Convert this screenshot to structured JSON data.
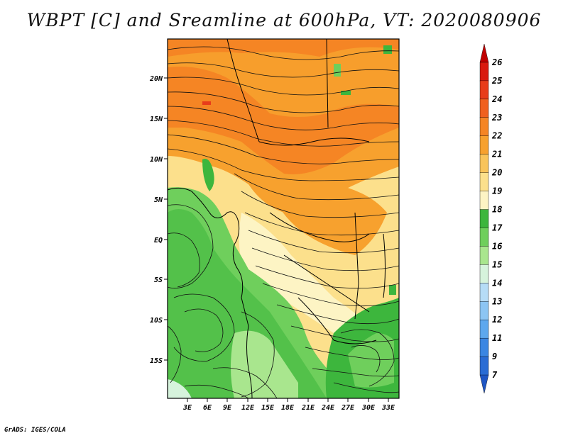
{
  "title": "WBPT [C] and Sreamline at 600hPa, VT: 2020080906",
  "credit": "GrADS: IGES/COLA",
  "map": {
    "lat_ticks": [
      "20N",
      "15N",
      "10N",
      "5N",
      "EQ",
      "5S",
      "10S",
      "15S"
    ],
    "lon_ticks": [
      "3E",
      "6E",
      "9E",
      "12E",
      "15E",
      "18E",
      "21E",
      "24E",
      "27E",
      "30E",
      "33E"
    ],
    "field": "wet-bulb potential temperature",
    "overlay": "streamlines"
  },
  "colorbar": {
    "labels": [
      "26",
      "25",
      "24",
      "23",
      "22",
      "21",
      "20",
      "19",
      "18",
      "17",
      "16",
      "15",
      "14",
      "13",
      "12",
      "11",
      "9",
      "7"
    ],
    "colors": [
      "#c00000",
      "#d91a0f",
      "#e83c1a",
      "#f0601e",
      "#f58524",
      "#f7a12e",
      "#f9c45a",
      "#fce08c",
      "#fdf4c4",
      "#3db63d",
      "#6fcf5c",
      "#a9e68e",
      "#d6f3dc",
      "#b6dcf6",
      "#8cc5f3",
      "#5ea8ee",
      "#3b86e2",
      "#2a6cd4",
      "#1f56c4"
    ]
  }
}
